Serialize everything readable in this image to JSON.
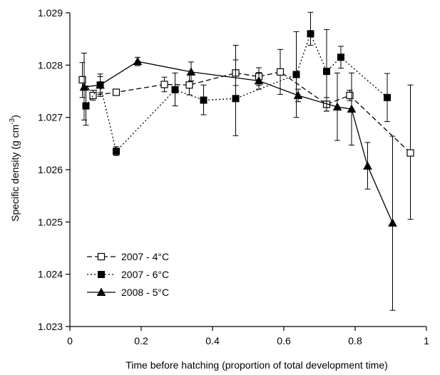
{
  "chart_data": {
    "type": "line",
    "xlabel": "Time before hatching (proportion of total development time)",
    "ylabel": "Specific density (g cm",
    "ylabel_superscript": "-3",
    "ylabel_close": ")",
    "xlim": [
      0,
      1
    ],
    "ylim": [
      1.023,
      1.029
    ],
    "x_ticks": [
      0,
      0.2,
      0.4,
      0.6,
      0.8,
      1
    ],
    "x_tick_labels": [
      "0",
      "0.2",
      "0.4",
      "0.6",
      "0.8",
      "1"
    ],
    "y_ticks": [
      1.023,
      1.024,
      1.025,
      1.026,
      1.027,
      1.028,
      1.029
    ],
    "y_tick_labels": [
      "1.023",
      "1.024",
      "1.025",
      "1.026",
      "1.027",
      "1.028",
      "1.029"
    ],
    "grid": false,
    "legend_position": "bottom-left",
    "series": [
      {
        "name": "2007 - 4°C",
        "marker": "open-square",
        "line": "dashed",
        "color": "#000000",
        "points": [
          {
            "x": 0.035,
            "y": 1.02772,
            "lo": 1.02738,
            "hi": 1.02805
          },
          {
            "x": 0.065,
            "y": 1.02742,
            "lo": 1.02733,
            "hi": 1.02752
          },
          {
            "x": 0.13,
            "y": 1.02748,
            "lo": 1.02748,
            "hi": 1.02748
          },
          {
            "x": 0.265,
            "y": 1.02763,
            "lo": 1.02749,
            "hi": 1.02777
          },
          {
            "x": 0.335,
            "y": 1.02762,
            "lo": 1.02743,
            "hi": 1.02781
          },
          {
            "x": 0.465,
            "y": 1.02785,
            "lo": 1.02761,
            "hi": 1.0281
          },
          {
            "x": 0.53,
            "y": 1.02778,
            "lo": 1.02761,
            "hi": 1.02795
          },
          {
            "x": 0.59,
            "y": 1.02787,
            "lo": 1.02744,
            "hi": 1.0283
          },
          {
            "x": 0.72,
            "y": 1.02725,
            "lo": 1.02712,
            "hi": 1.02738
          },
          {
            "x": 0.785,
            "y": 1.02742,
            "lo": 1.02732,
            "hi": 1.02752
          },
          {
            "x": 0.955,
            "y": 1.02632,
            "lo": 1.02505,
            "hi": 1.02762
          }
        ]
      },
      {
        "name": "2007 - 6°C",
        "marker": "filled-square",
        "line": "dotted",
        "color": "#000000",
        "points": [
          {
            "x": 0.045,
            "y": 1.02722,
            "lo": 1.02685,
            "hi": 1.0276
          },
          {
            "x": 0.085,
            "y": 1.02762,
            "lo": 1.0274,
            "hi": 1.02783
          },
          {
            "x": 0.13,
            "y": 1.02635,
            "lo": 1.02627,
            "hi": 1.02644
          },
          {
            "x": 0.295,
            "y": 1.02753,
            "lo": 1.02722,
            "hi": 1.02785
          },
          {
            "x": 0.375,
            "y": 1.02733,
            "lo": 1.02705,
            "hi": 1.02762
          },
          {
            "x": 0.465,
            "y": 1.02736,
            "lo": 1.02665,
            "hi": 1.02838
          },
          {
            "x": 0.635,
            "y": 1.02782,
            "lo": 1.027,
            "hi": 1.02864
          },
          {
            "x": 0.675,
            "y": 1.0286,
            "lo": 1.02838,
            "hi": 1.02901
          },
          {
            "x": 0.72,
            "y": 1.02788,
            "lo": 1.02712,
            "hi": 1.02868
          },
          {
            "x": 0.76,
            "y": 1.02815,
            "lo": 1.02794,
            "hi": 1.02836
          },
          {
            "x": 0.89,
            "y": 1.02738,
            "lo": 1.02692,
            "hi": 1.02784
          }
        ]
      },
      {
        "name": "2008 - 5°C",
        "marker": "filled-triangle",
        "line": "solid",
        "color": "#000000",
        "points": [
          {
            "x": 0.04,
            "y": 1.02758,
            "lo": 1.02695,
            "hi": 1.02823
          },
          {
            "x": 0.085,
            "y": 1.02762,
            "lo": 1.02747,
            "hi": 1.02778
          },
          {
            "x": 0.19,
            "y": 1.02807,
            "lo": 1.02799,
            "hi": 1.02815
          },
          {
            "x": 0.34,
            "y": 1.02787,
            "lo": 1.0277,
            "hi": 1.02806
          },
          {
            "x": 0.53,
            "y": 1.0277,
            "lo": 1.02754,
            "hi": 1.02786
          },
          {
            "x": 0.64,
            "y": 1.02742,
            "lo": 1.0273,
            "hi": 1.02754
          },
          {
            "x": 0.75,
            "y": 1.0272,
            "lo": 1.02656,
            "hi": 1.02785
          },
          {
            "x": 0.79,
            "y": 1.02716,
            "lo": 1.02647,
            "hi": 1.02785
          },
          {
            "x": 0.835,
            "y": 1.02607,
            "lo": 1.02563,
            "hi": 1.02652
          },
          {
            "x": 0.905,
            "y": 1.02498,
            "lo": 1.02331,
            "hi": 1.02664
          }
        ]
      }
    ]
  }
}
